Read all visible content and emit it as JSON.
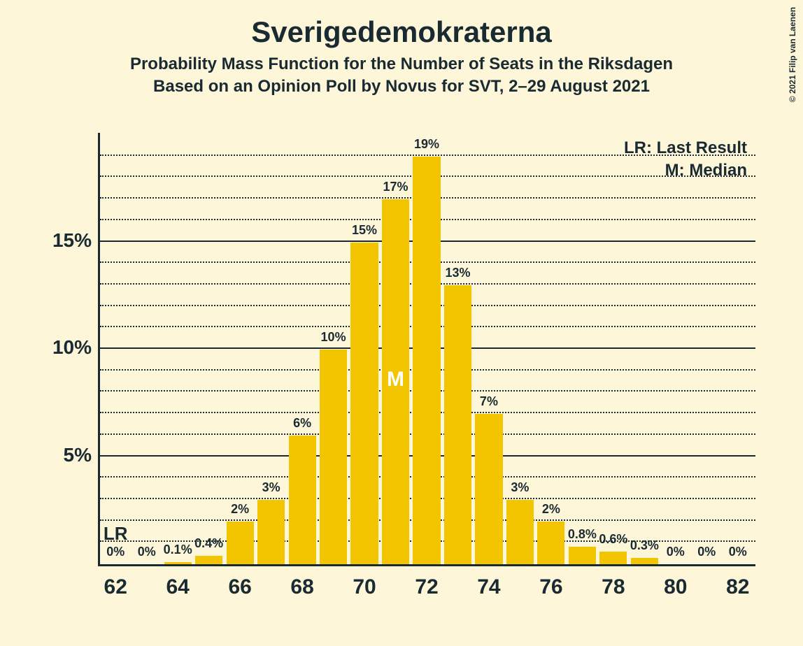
{
  "title": "Sverigedemokraterna",
  "subtitle1": "Probability Mass Function for the Number of Seats in the Riksdagen",
  "subtitle2": "Based on an Opinion Poll by Novus for SVT, 2–29 August 2021",
  "copyright": "© 2021 Filip van Laenen",
  "legend": {
    "lr": "LR: Last Result",
    "m": "M: Median"
  },
  "chart": {
    "type": "bar",
    "background_color": "#fdf6d8",
    "bar_color": "#f2c500",
    "axis_color": "#1a2a33",
    "grid_color": "#1a2a33",
    "text_color": "#1a2a33",
    "median_text_color": "#ffffff",
    "y": {
      "min": 0,
      "max": 20,
      "major_ticks": [
        5,
        10,
        15
      ],
      "minor_step": 1,
      "major_labels": [
        "5%",
        "10%",
        "15%"
      ]
    },
    "x": {
      "min": 62,
      "max": 82,
      "tick_step": 2,
      "tick_labels": [
        "62",
        "64",
        "66",
        "68",
        "70",
        "72",
        "74",
        "76",
        "78",
        "80",
        "82"
      ]
    },
    "bar_gap_ratio": 0.12,
    "bars": [
      {
        "x": 62,
        "value": 0,
        "label": "0%"
      },
      {
        "x": 63,
        "value": 0,
        "label": "0%"
      },
      {
        "x": 64,
        "value": 0.1,
        "label": "0.1%"
      },
      {
        "x": 65,
        "value": 0.4,
        "label": "0.4%"
      },
      {
        "x": 66,
        "value": 2,
        "label": "2%"
      },
      {
        "x": 67,
        "value": 3,
        "label": "3%"
      },
      {
        "x": 68,
        "value": 6,
        "label": "6%"
      },
      {
        "x": 69,
        "value": 10,
        "label": "10%"
      },
      {
        "x": 70,
        "value": 15,
        "label": "15%"
      },
      {
        "x": 71,
        "value": 17,
        "label": "17%"
      },
      {
        "x": 72,
        "value": 19,
        "label": "19%"
      },
      {
        "x": 73,
        "value": 13,
        "label": "13%"
      },
      {
        "x": 74,
        "value": 7,
        "label": "7%"
      },
      {
        "x": 75,
        "value": 3,
        "label": "3%"
      },
      {
        "x": 76,
        "value": 2,
        "label": "2%"
      },
      {
        "x": 77,
        "value": 0.8,
        "label": "0.8%"
      },
      {
        "x": 78,
        "value": 0.6,
        "label": "0.6%"
      },
      {
        "x": 79,
        "value": 0.3,
        "label": "0.3%"
      },
      {
        "x": 80,
        "value": 0,
        "label": "0%"
      },
      {
        "x": 81,
        "value": 0,
        "label": "0%"
      },
      {
        "x": 82,
        "value": 0,
        "label": "0%"
      }
    ],
    "lr_marker": {
      "x": 62,
      "text": "LR"
    },
    "median_marker": {
      "x": 71,
      "text": "M"
    }
  }
}
